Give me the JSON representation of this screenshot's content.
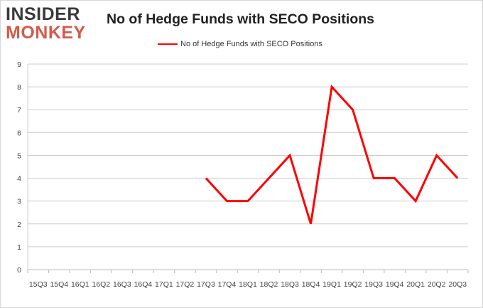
{
  "brand": {
    "line1": "INSIDER",
    "line2": "MONKEY"
  },
  "chart_data": {
    "type": "line",
    "title": "No of Hedge Funds with SECO Positions",
    "xlabel": "",
    "ylabel": "",
    "categories": [
      "15Q3",
      "15Q4",
      "16Q1",
      "16Q2",
      "16Q3",
      "16Q4",
      "17Q1",
      "17Q2",
      "17Q3",
      "17Q4",
      "18Q1",
      "18Q2",
      "18Q3",
      "18Q4",
      "19Q1",
      "19Q2",
      "19Q3",
      "19Q4",
      "20Q1",
      "20Q2",
      "20Q3"
    ],
    "series": [
      {
        "name": "No of Hedge Funds with SECO Positions",
        "color": "#ff0000",
        "values": [
          null,
          null,
          null,
          null,
          null,
          null,
          null,
          null,
          4,
          3,
          3,
          4,
          5,
          2,
          8,
          7,
          4,
          4,
          3,
          5,
          4
        ]
      }
    ],
    "ylim": [
      0,
      9
    ],
    "yticks": [
      0,
      1,
      2,
      3,
      4,
      5,
      6,
      7,
      8,
      9
    ],
    "grid": true,
    "legend_position": "top-center"
  }
}
